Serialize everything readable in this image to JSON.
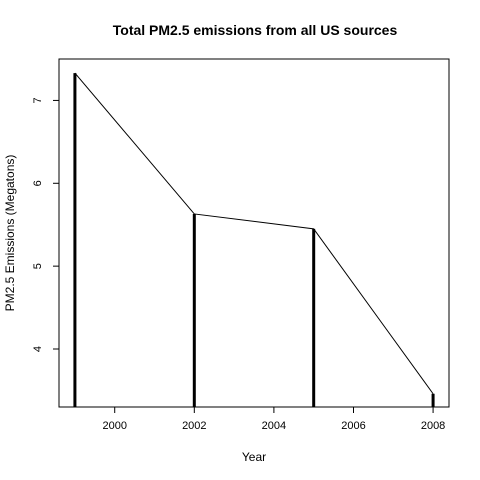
{
  "chart_data": {
    "type": "line",
    "title": "Total PM2.5 emissions from all US sources",
    "xlabel": "Year",
    "ylabel": "PM2.5 Emissions (Megatons)",
    "x": [
      1999,
      2002,
      2005,
      2008
    ],
    "values": [
      7.33,
      5.63,
      5.45,
      3.46
    ],
    "xlim": [
      1998.6,
      2008.4
    ],
    "ylim": [
      3.3,
      7.5
    ],
    "xticks": [
      2000,
      2002,
      2004,
      2006,
      2008
    ],
    "yticks": [
      4,
      5,
      6,
      7
    ],
    "grid": false,
    "legend": "none",
    "colors": {
      "line": "#000000",
      "background": "#ffffff"
    }
  }
}
